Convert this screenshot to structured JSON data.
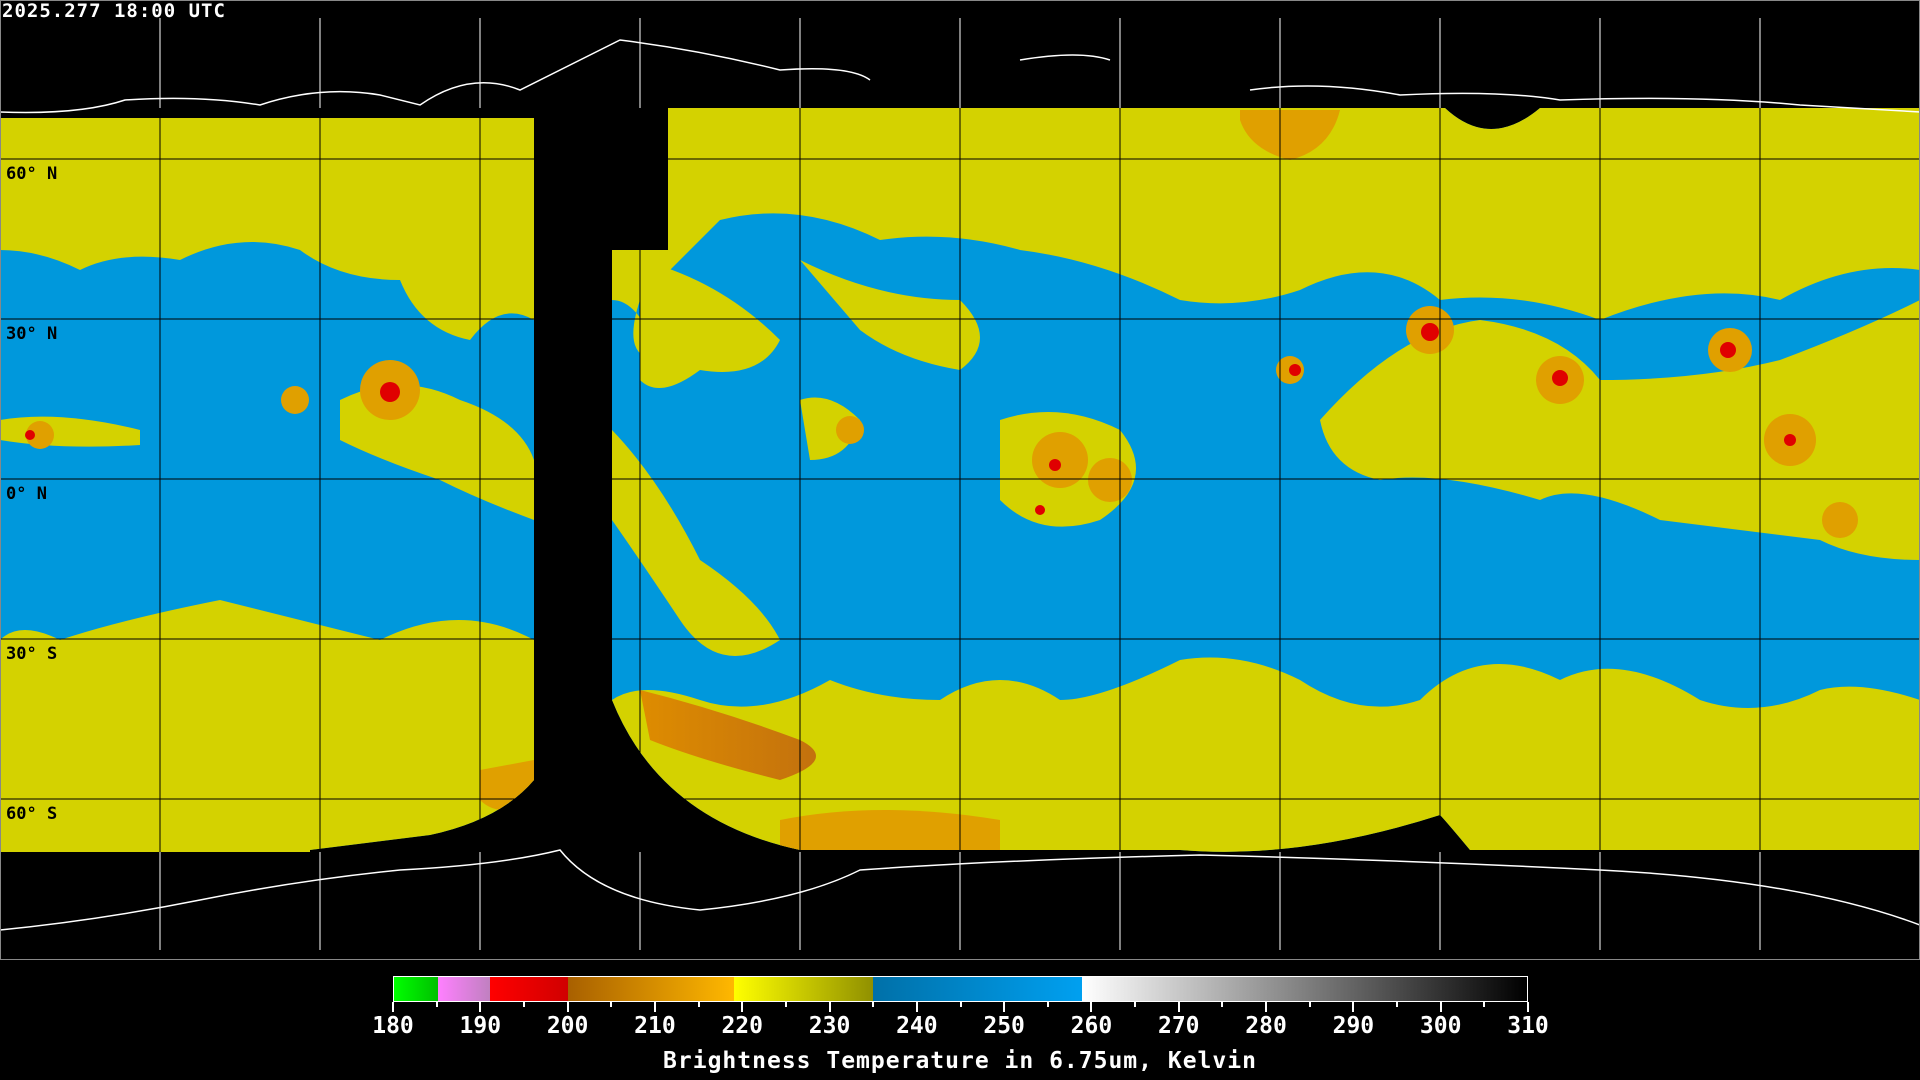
{
  "header": {
    "timestamp": "2025.277 18:00 UTC"
  },
  "map": {
    "projection": "equirectangular",
    "grid_spacing_deg": 30,
    "lat_labels": [
      "60° N",
      "30° N",
      "0° N",
      "30° S",
      "60° S"
    ],
    "colors": {
      "background": "#000000",
      "grid": "#000000",
      "coast_land_data": "#000000",
      "coast_no_data": "#ffffff",
      "moist": "#0098dc",
      "dry": "#d4d200",
      "cold": "#e0a000",
      "very_cold": "#e00000"
    }
  },
  "colorbar": {
    "min": 180,
    "max": 310,
    "tick_labels": [
      "180",
      "190",
      "200",
      "210",
      "220",
      "230",
      "240",
      "250",
      "260",
      "270",
      "280",
      "290",
      "300",
      "310"
    ],
    "segments": [
      {
        "from": 180,
        "to": 185,
        "colors": [
          "#00ff00",
          "#00c000"
        ]
      },
      {
        "from": 185,
        "to": 191,
        "colors": [
          "#ff80ff",
          "#c080c0"
        ]
      },
      {
        "from": 191,
        "to": 200,
        "colors": [
          "#ff0000",
          "#d00000"
        ]
      },
      {
        "from": 200,
        "to": 219,
        "colors": [
          "#a86000",
          "#ffb800"
        ]
      },
      {
        "from": 219,
        "to": 235,
        "colors": [
          "#ffff00",
          "#909000"
        ]
      },
      {
        "from": 235,
        "to": 259,
        "colors": [
          "#0070a8",
          "#00a0f0"
        ]
      },
      {
        "from": 259,
        "to": 310,
        "colors": [
          "#ffffff",
          "#000000"
        ]
      }
    ],
    "title": "Brightness Temperature in 6.75um, Kelvin"
  }
}
